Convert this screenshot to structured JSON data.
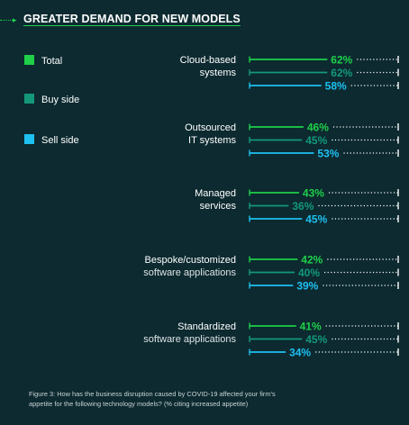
{
  "header": {
    "title": "GREATER DEMAND FOR NEW MODELS"
  },
  "caption": {
    "line1": "Figure 3: How has the business disruption caused by COVID-19 affected your firm’s",
    "line2": "appetite for the following technology models? (% citing increased appetite)"
  },
  "chart_data": {
    "type": "bar",
    "orientation": "horizontal",
    "categories": [
      [
        "Cloud-based",
        "systems"
      ],
      [
        "Outsourced",
        "IT systems"
      ],
      [
        "Managed",
        "services"
      ],
      [
        "Bespoke/customized",
        "software applications"
      ],
      [
        "Standardized",
        "software applications"
      ]
    ],
    "series": [
      {
        "name": "Total",
        "color": "#1fcf4a",
        "values": [
          62,
          46,
          43,
          42,
          41
        ]
      },
      {
        "name": "Buy side",
        "color": "#14987a",
        "values": [
          62,
          45,
          36,
          40,
          45
        ]
      },
      {
        "name": "Sell side",
        "color": "#1ec0f0",
        "values": [
          58,
          53,
          45,
          39,
          34
        ]
      }
    ],
    "value_suffix": "%",
    "xlim": [
      0,
      100
    ],
    "legend_position": "left"
  }
}
